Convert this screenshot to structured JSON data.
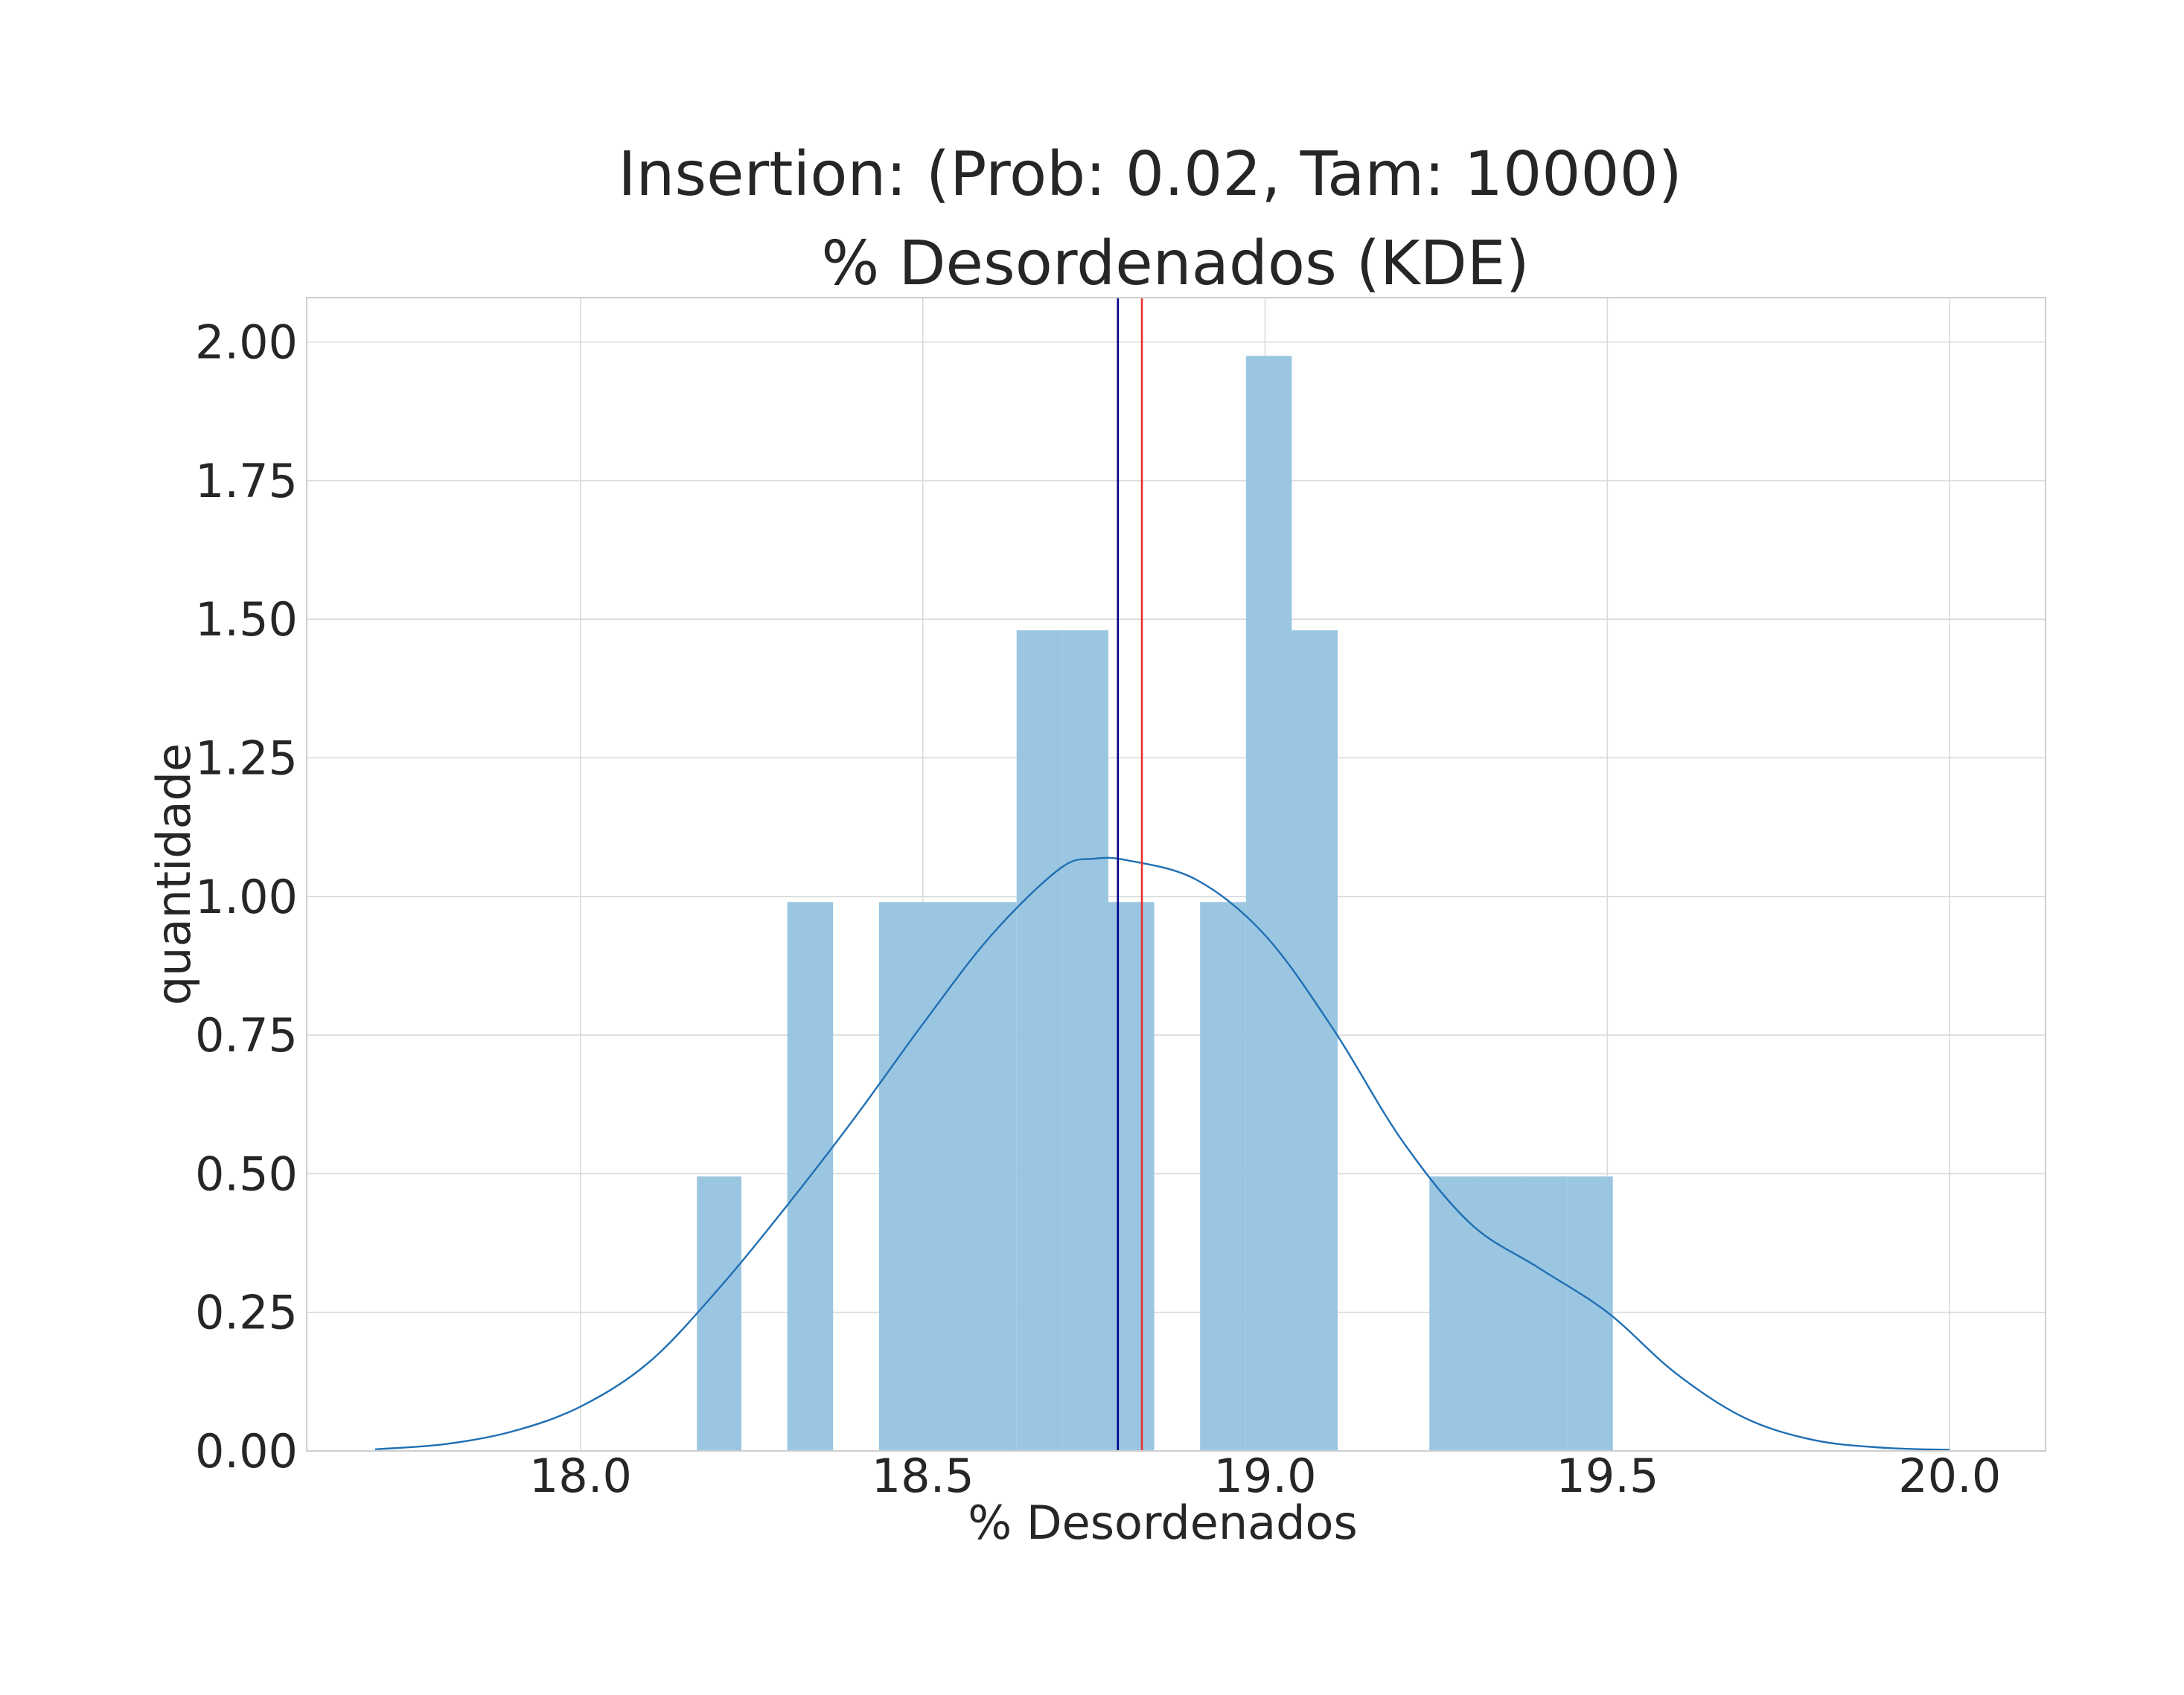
{
  "chart_data": {
    "type": "bar",
    "title": "Insertion: (Prob: 0.02, Tam: 10000)",
    "subtitle": "% Desordenados (KDE)",
    "xlabel": "% Desordenados",
    "ylabel": "quantidade",
    "xlim": [
      17.6,
      20.14
    ],
    "ylim": [
      0,
      2.08
    ],
    "x_ticks": [
      "18.0",
      "18.5",
      "19.0",
      "19.5",
      "20.0"
    ],
    "x_tick_values": [
      18.0,
      18.5,
      19.0,
      19.5,
      20.0
    ],
    "y_ticks": [
      "0.00",
      "0.25",
      "0.50",
      "0.75",
      "1.00",
      "1.25",
      "1.50",
      "1.75",
      "2.00"
    ],
    "y_tick_values": [
      0,
      0.25,
      0.5,
      0.75,
      1.0,
      1.25,
      1.5,
      1.75,
      2.0
    ],
    "grid": true,
    "histogram": {
      "bins": [
        {
          "x0": 18.17,
          "x1": 18.235,
          "value": 0.495
        },
        {
          "x0": 18.235,
          "x1": 18.302,
          "value": 0
        },
        {
          "x0": 18.302,
          "x1": 18.369,
          "value": 0.99
        },
        {
          "x0": 18.369,
          "x1": 18.436,
          "value": 0
        },
        {
          "x0": 18.436,
          "x1": 18.503,
          "value": 0.99
        },
        {
          "x0": 18.503,
          "x1": 18.57,
          "value": 0.99
        },
        {
          "x0": 18.57,
          "x1": 18.637,
          "value": 0.99
        },
        {
          "x0": 18.637,
          "x1": 18.704,
          "value": 1.48
        },
        {
          "x0": 18.704,
          "x1": 18.771,
          "value": 1.48
        },
        {
          "x0": 18.771,
          "x1": 18.838,
          "value": 0.99
        },
        {
          "x0": 18.838,
          "x1": 18.905,
          "value": 0
        },
        {
          "x0": 18.905,
          "x1": 18.972,
          "value": 0.99
        },
        {
          "x0": 18.972,
          "x1": 19.039,
          "value": 1.975
        },
        {
          "x0": 19.039,
          "x1": 19.106,
          "value": 1.48
        },
        {
          "x0": 19.106,
          "x1": 19.173,
          "value": 0
        },
        {
          "x0": 19.173,
          "x1": 19.24,
          "value": 0
        },
        {
          "x0": 19.24,
          "x1": 19.307,
          "value": 0.495
        },
        {
          "x0": 19.307,
          "x1": 19.374,
          "value": 0.495
        },
        {
          "x0": 19.374,
          "x1": 19.441,
          "value": 0.495
        },
        {
          "x0": 19.441,
          "x1": 19.508,
          "value": 0.495
        }
      ],
      "color": "#9bc6e1"
    },
    "kde": {
      "x": [
        17.7,
        17.8,
        17.9,
        18.0,
        18.1,
        18.2,
        18.3,
        18.4,
        18.5,
        18.6,
        18.7,
        18.75,
        18.8,
        18.9,
        19.0,
        19.1,
        19.2,
        19.3,
        19.4,
        19.5,
        19.6,
        19.7,
        19.8,
        19.9,
        20.0
      ],
      "y": [
        0.003,
        0.012,
        0.035,
        0.08,
        0.16,
        0.29,
        0.44,
        0.6,
        0.77,
        0.93,
        1.05,
        1.068,
        1.065,
        1.03,
        0.93,
        0.76,
        0.56,
        0.41,
        0.33,
        0.25,
        0.14,
        0.06,
        0.02,
        0.006,
        0.002
      ],
      "color": "#1f6fb4"
    },
    "vlines": [
      {
        "x": 18.785,
        "color": "#00008b"
      },
      {
        "x": 18.82,
        "color": "#e8312f"
      }
    ]
  }
}
